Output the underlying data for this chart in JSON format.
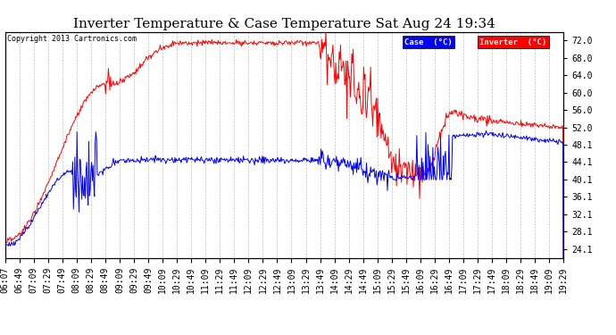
{
  "title": "Inverter Temperature & Case Temperature Sat Aug 24 19:34",
  "copyright": "Copyright 2013 Cartronics.com",
  "ylabel_right_ticks": [
    24.1,
    28.1,
    32.1,
    36.1,
    40.1,
    44.1,
    48.1,
    52.0,
    56.0,
    60.0,
    64.0,
    68.0,
    72.0
  ],
  "x_tick_labels": [
    "06:07",
    "06:49",
    "07:09",
    "07:29",
    "07:49",
    "08:09",
    "08:29",
    "08:49",
    "09:09",
    "09:29",
    "09:49",
    "10:09",
    "10:29",
    "10:49",
    "11:09",
    "11:29",
    "11:49",
    "12:09",
    "12:29",
    "12:49",
    "13:09",
    "13:29",
    "13:49",
    "14:09",
    "14:29",
    "14:49",
    "15:09",
    "15:29",
    "15:49",
    "16:09",
    "16:29",
    "16:49",
    "17:09",
    "17:29",
    "17:49",
    "18:09",
    "18:29",
    "18:49",
    "19:09",
    "19:29"
  ],
  "case_color": "#0000FF",
  "inverter_color": "#FF0000",
  "legend_case_bg": "#0000FF",
  "legend_inverter_bg": "#FF0000",
  "legend_text_color": "#FFFFFF",
  "background_color": "#FFFFFF",
  "plot_bg_color": "#FFFFFF",
  "grid_color": "#BBBBBB",
  "title_fontsize": 11,
  "tick_fontsize": 7,
  "ymin": 22.0,
  "ymax": 74.0
}
